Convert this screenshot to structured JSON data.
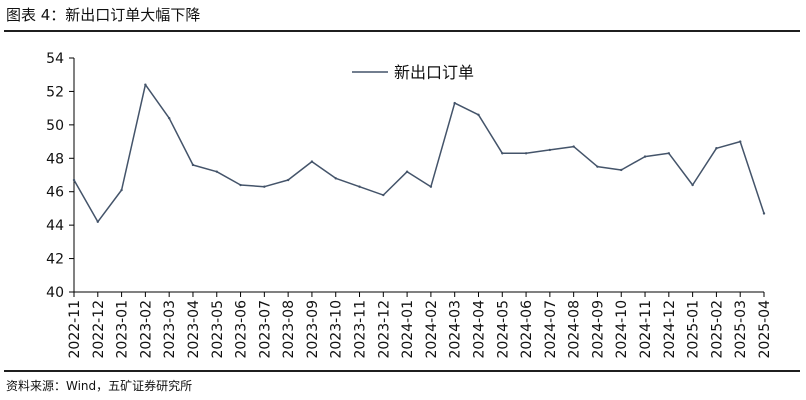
{
  "header": {
    "title": "图表 4：新出口订单大幅下降"
  },
  "footer": {
    "source": "资料来源：Wind，五矿证券研究所"
  },
  "chart_data": {
    "type": "line",
    "title": "",
    "xlabel": "",
    "ylabel": "",
    "ylim": [
      40,
      54
    ],
    "yticks": [
      40,
      42,
      44,
      46,
      48,
      50,
      52,
      54
    ],
    "grid": false,
    "legend_position": "top-center",
    "series_color": "#44546a",
    "categories": [
      "2022-11",
      "2022-12",
      "2023-01",
      "2023-02",
      "2023-03",
      "2023-04",
      "2023-05",
      "2023-06",
      "2023-07",
      "2023-08",
      "2023-09",
      "2023-10",
      "2023-11",
      "2023-12",
      "2024-01",
      "2024-02",
      "2024-03",
      "2024-04",
      "2024-05",
      "2024-06",
      "2024-07",
      "2024-08",
      "2024-09",
      "2024-10",
      "2024-11",
      "2024-12",
      "2025-01",
      "2025-02",
      "2025-03",
      "2025-04"
    ],
    "series": [
      {
        "name": "新出口订单",
        "values": [
          46.7,
          44.2,
          46.1,
          52.4,
          50.4,
          47.6,
          47.2,
          46.4,
          46.3,
          46.7,
          47.8,
          46.8,
          46.3,
          45.8,
          47.2,
          46.3,
          51.3,
          50.6,
          48.3,
          48.3,
          48.5,
          48.7,
          47.5,
          47.3,
          48.1,
          48.3,
          46.4,
          48.6,
          49.0,
          44.7
        ]
      }
    ]
  }
}
